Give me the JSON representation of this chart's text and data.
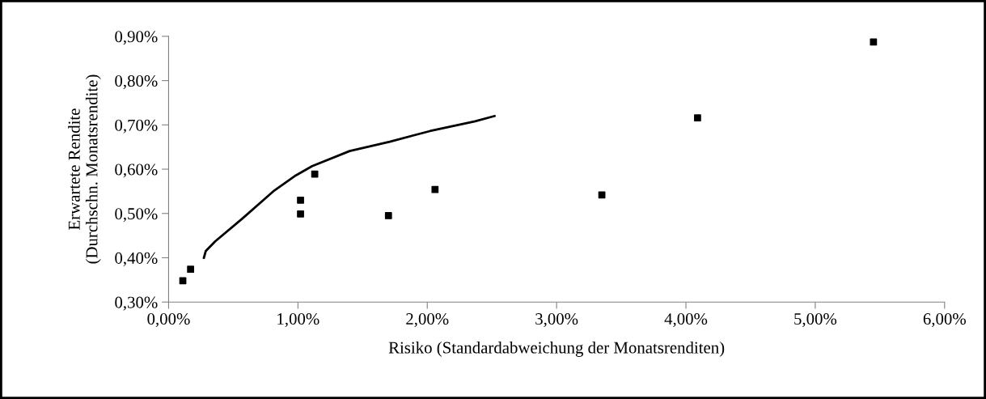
{
  "chart_data": {
    "type": "scatter",
    "xlabel": "Risiko (Standardabweichung der Monatsrenditen)",
    "ylabel": "Erwartete Rendite\n(Durchschn. Monatsrendite)",
    "series": [
      {
        "color": "#000000",
        "marker": "square",
        "x": [
          0.11,
          0.17,
          1.02,
          1.02,
          1.13,
          1.7,
          2.06,
          3.35,
          4.09,
          5.45
        ],
        "values": [
          0.348,
          0.374,
          0.499,
          0.53,
          0.589,
          0.495,
          0.554,
          0.542,
          0.716,
          0.887
        ]
      },
      {
        "type": "line",
        "color": "#000000",
        "marker": "none",
        "line_style": "solid",
        "x": [
          0.273,
          0.287,
          0.36,
          0.568,
          0.818,
          0.984,
          1.11,
          1.4,
          1.71,
          2.02,
          2.37,
          2.52
        ],
        "values": [
          0.4,
          0.415,
          0.437,
          0.488,
          0.552,
          0.586,
          0.607,
          0.641,
          0.662,
          0.686,
          0.708,
          0.72
        ]
      }
    ],
    "xlim": [
      0,
      6
    ],
    "ylim": [
      0.3,
      0.9
    ],
    "xticks": [
      {
        "value": 0,
        "label": "0,00%"
      },
      {
        "value": 1,
        "label": "1,00%"
      },
      {
        "value": 2,
        "label": "2,00%"
      },
      {
        "value": 3,
        "label": "3,00%"
      },
      {
        "value": 4,
        "label": "4,00%"
      },
      {
        "value": 5,
        "label": "5,00%"
      },
      {
        "value": 6,
        "label": "6,00%"
      }
    ],
    "yticks": [
      {
        "value": 0.3,
        "label": "0,30%"
      },
      {
        "value": 0.4,
        "label": "0,40%"
      },
      {
        "value": 0.5,
        "label": "0,50%"
      },
      {
        "value": 0.6,
        "label": "0,60%"
      },
      {
        "value": 0.7,
        "label": "0,70%"
      },
      {
        "value": 0.8,
        "label": "0,80%"
      },
      {
        "value": 0.9,
        "label": "0,90%"
      }
    ],
    "grid": false,
    "legend": false
  }
}
